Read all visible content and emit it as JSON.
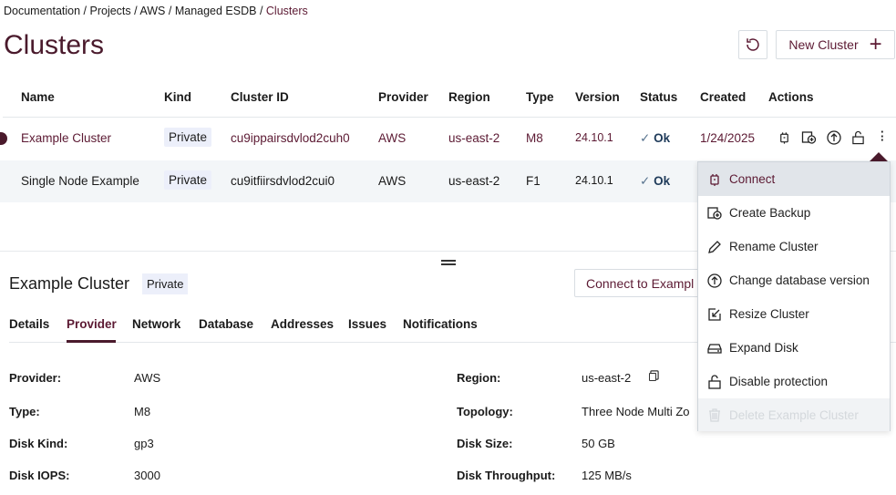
{
  "breadcrumb": [
    "Documentation",
    "Projects",
    "AWS",
    "Managed ESDB",
    "Clusters"
  ],
  "title": "Clusters",
  "toolbar": {
    "refresh_icon": "refresh-icon",
    "new_cluster": "New Cluster"
  },
  "table": {
    "headers": [
      "Name",
      "Kind",
      "Cluster ID",
      "Provider",
      "Region",
      "Type",
      "Version",
      "Status",
      "Created",
      "Actions"
    ],
    "rows": [
      {
        "name": "Example Cluster",
        "kind": "Private",
        "id": "cu9ippairsdvlod2cuh0",
        "provider": "AWS",
        "region": "us-east-2",
        "type": "M8",
        "version": "24.10.1",
        "status": "Ok",
        "created": "1/24/2025",
        "selected": true
      },
      {
        "name": "Single Node Example",
        "kind": "Private",
        "id": "cu9itfiirsdvlod2cui0",
        "provider": "AWS",
        "region": "us-east-2",
        "type": "F1",
        "version": "24.10.1",
        "status": "Ok",
        "created": ""
      }
    ]
  },
  "detail": {
    "name": "Example Cluster",
    "kind": "Private",
    "connect": "Connect to Exampl",
    "tabs": [
      "Details",
      "Provider",
      "Network",
      "Database",
      "Addresses",
      "Issues",
      "Notifications"
    ],
    "active_tab": "Provider",
    "fields_left": [
      {
        "label": "Provider:",
        "value": "AWS"
      },
      {
        "label": "Type:",
        "value": "M8"
      },
      {
        "label": "Disk Kind:",
        "value": "gp3"
      },
      {
        "label": "Disk IOPS:",
        "value": "3000"
      }
    ],
    "fields_right": [
      {
        "label": "Region:",
        "value": "us-east-2"
      },
      {
        "label": "Topology:",
        "value": "Three Node Multi Zo"
      },
      {
        "label": "Disk Size:",
        "value": "50 GB"
      },
      {
        "label": "Disk Throughput:",
        "value": "125 MB/s"
      }
    ]
  },
  "menu": [
    "Connect",
    "Create Backup",
    "Rename Cluster",
    "Change database version",
    "Resize Cluster",
    "Expand Disk",
    "Disable protection",
    "Delete Example Cluster"
  ],
  "colors": {
    "accent": "#5c1a33",
    "ok": "#1f3b5a",
    "row_alt": "#f3f6f8"
  }
}
